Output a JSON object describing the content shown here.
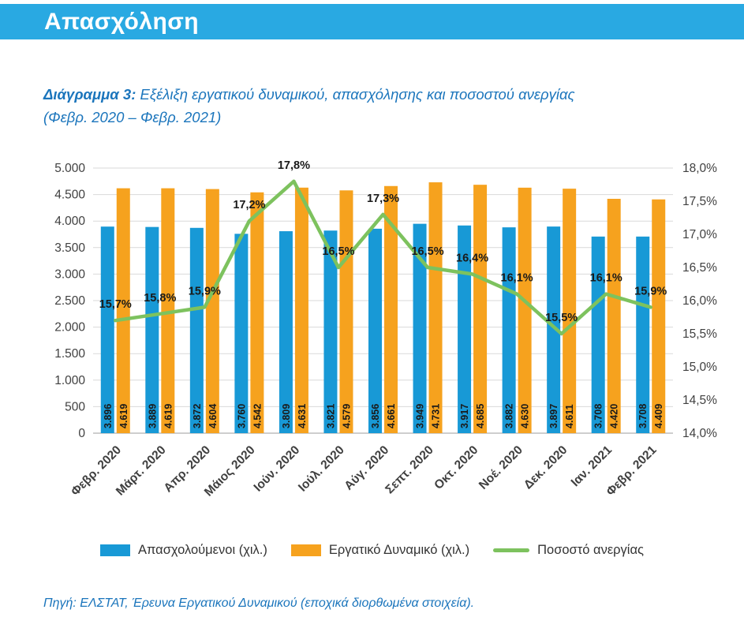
{
  "header": {
    "title": "Απασχόληση"
  },
  "figure": {
    "caption_prefix": "Διάγραμμα 3:",
    "caption_rest": " Εξέλιξη εργατικού δυναμικού, απασχόλησης και ποσοστού ανεργίας",
    "caption_line2": "(Φεβρ. 2020 – Φεβρ. 2021)"
  },
  "chart_data": {
    "type": "bar+line",
    "grid": true,
    "legend_position": "bottom",
    "categories": [
      "Φεβρ. 2020",
      "Μάρτ. 2020",
      "Απρ. 2020",
      "Μάιος 2020",
      "Ιούν. 2020",
      "Ιούλ. 2020",
      "Αύγ. 2020",
      "Σεπτ. 2020",
      "Οκτ. 2020",
      "Νοέ. 2020",
      "Δεκ. 2020",
      "Ιαν. 2021",
      "Φεβρ. 2021"
    ],
    "series": [
      {
        "name": "Απασχολούμενοι (χιλ.)",
        "type": "bar",
        "color": "#1899D6",
        "axis": "left",
        "values": [
          3896,
          3889,
          3872,
          3760,
          3809,
          3821,
          3856,
          3949,
          3917,
          3882,
          3897,
          3708,
          3708
        ],
        "labels": [
          "3.896",
          "3.889",
          "3.872",
          "3.760",
          "3.809",
          "3.821",
          "3.856",
          "3.949",
          "3.917",
          "3.882",
          "3.897",
          "3.708",
          "3.708"
        ]
      },
      {
        "name": "Εργατικό Δυναμικό (χιλ.)",
        "type": "bar",
        "color": "#F6A21E",
        "axis": "left",
        "values": [
          4619,
          4619,
          4604,
          4542,
          4631,
          4579,
          4661,
          4731,
          4685,
          4630,
          4611,
          4420,
          4409
        ],
        "labels": [
          "4.619",
          "4.619",
          "4.604",
          "4.542",
          "4.631",
          "4.579",
          "4.661",
          "4.731",
          "4.685",
          "4.630",
          "4.611",
          "4.420",
          "4.409"
        ]
      },
      {
        "name": "Ποσοστό ανεργίας",
        "type": "line",
        "color": "#7DC25E",
        "axis": "right",
        "values": [
          15.7,
          15.8,
          15.9,
          17.2,
          17.8,
          16.5,
          17.3,
          16.5,
          16.4,
          16.1,
          15.5,
          16.1,
          15.9
        ],
        "labels": [
          "15,7%",
          "15,8%",
          "15,9%",
          "17,2%",
          "17,8%",
          "16,5%",
          "17,3%",
          "16,5%",
          "16,4%",
          "16,1%",
          "15,5%",
          "16,1%",
          "15,9%"
        ]
      }
    ],
    "left_axis": {
      "min": 0,
      "max": 5000,
      "step": 500,
      "tick_labels": [
        "0",
        "500",
        "1.000",
        "1.500",
        "2.000",
        "2.500",
        "3.000",
        "3.500",
        "4.000",
        "4.500",
        "5.000"
      ]
    },
    "right_axis": {
      "min": 14,
      "max": 18,
      "step": 0.5,
      "tick_labels": [
        "14,0%",
        "14,5%",
        "15,0%",
        "15,5%",
        "16,0%",
        "16,5%",
        "17,0%",
        "17,5%",
        "18,0%"
      ]
    }
  },
  "footer": {
    "source": "Πηγή: ΕΛΣΤΑΤ, Έρευνα Εργατικού Δυναμικού (εποχικά διορθωμένα στοιχεία)."
  }
}
